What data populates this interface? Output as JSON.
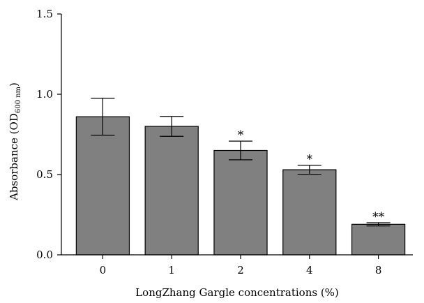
{
  "chart_data": {
    "type": "bar",
    "categories": [
      "0",
      "1",
      "2",
      "4",
      "8"
    ],
    "values": [
      0.86,
      0.8,
      0.65,
      0.53,
      0.19
    ],
    "errors": [
      0.115,
      0.062,
      0.058,
      0.028,
      0.01
    ],
    "significance": [
      "",
      "",
      "*",
      "*",
      "**"
    ],
    "title": "",
    "xlabel": "LongZhang Gargle concentrations (%)",
    "ylabel": {
      "prefix": "Absorbance (OD",
      "subscript": "600 nm",
      "suffix": ")"
    },
    "ylim": [
      0,
      1.5
    ],
    "yticks": [
      "0.0",
      "0.5",
      "1.0",
      "1.5"
    ],
    "grid": false,
    "bar_color": "#808080"
  }
}
